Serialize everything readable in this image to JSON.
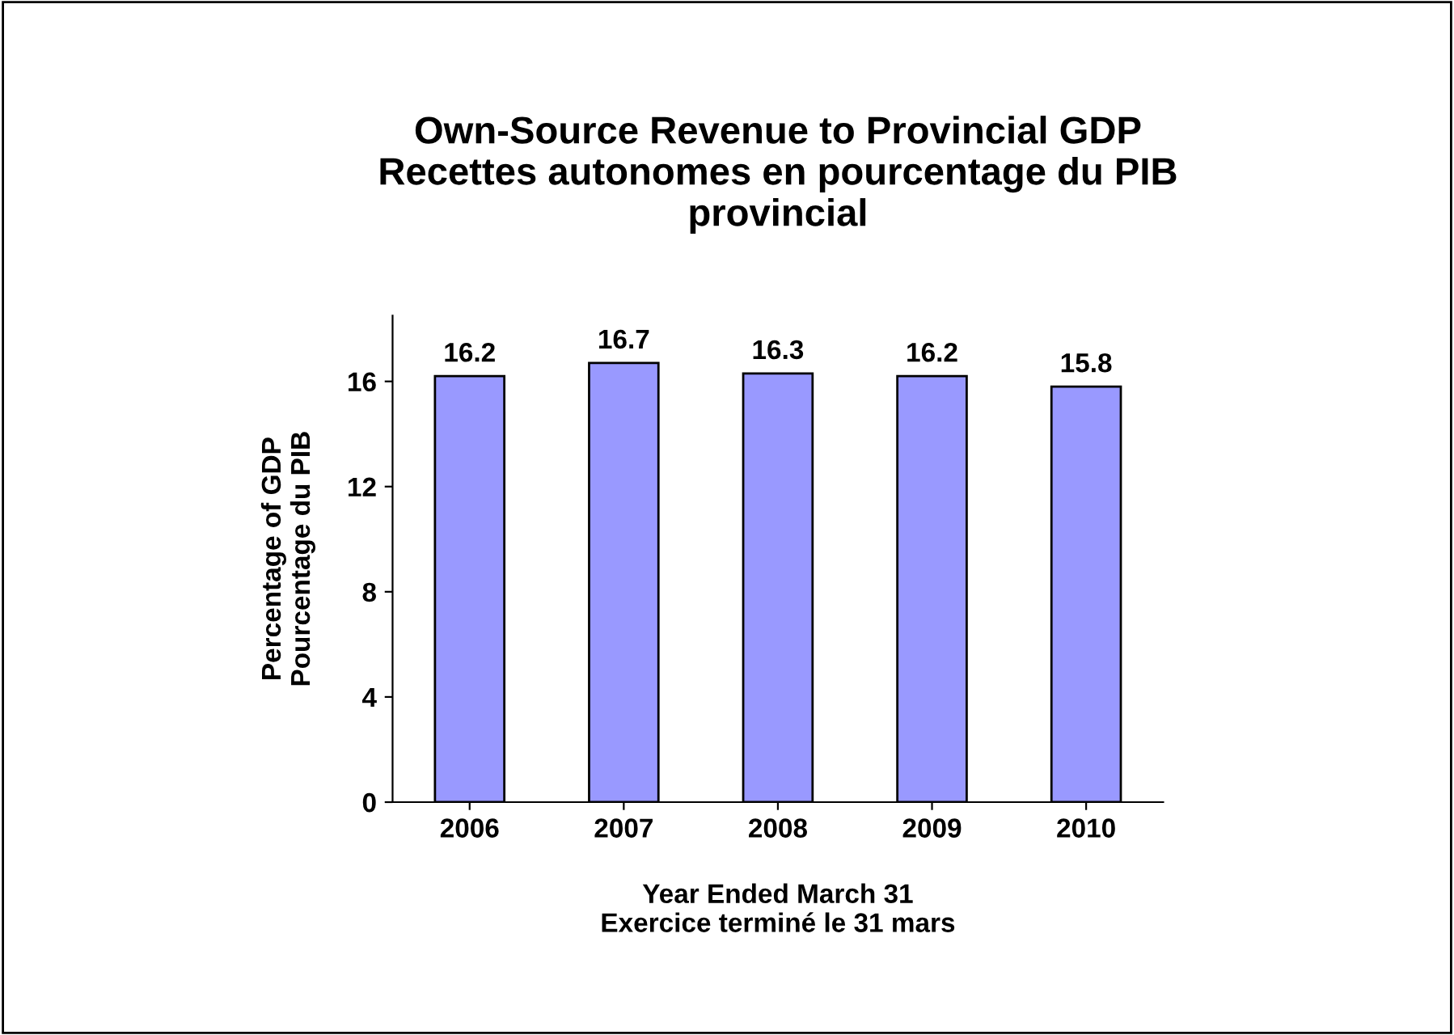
{
  "chart_data": {
    "type": "bar",
    "title": "Own-Source Revenue to Provincial GDP\nRecettes autonomes en pourcentage du PIB\nprovincial",
    "xlabel": "Year Ended March 31\nExercice terminé le 31 mars",
    "ylabel": "Percentage of GDP\nPourcentage du PIB",
    "categories": [
      "2006",
      "2007",
      "2008",
      "2009",
      "2010"
    ],
    "values": [
      16.2,
      16.7,
      16.3,
      16.2,
      15.8
    ],
    "color": "#9999ff",
    "ylim": [
      0,
      18.5
    ],
    "yticks": [
      0,
      4,
      8,
      12,
      16
    ],
    "data_labels": true,
    "grid": false,
    "legend": false
  }
}
